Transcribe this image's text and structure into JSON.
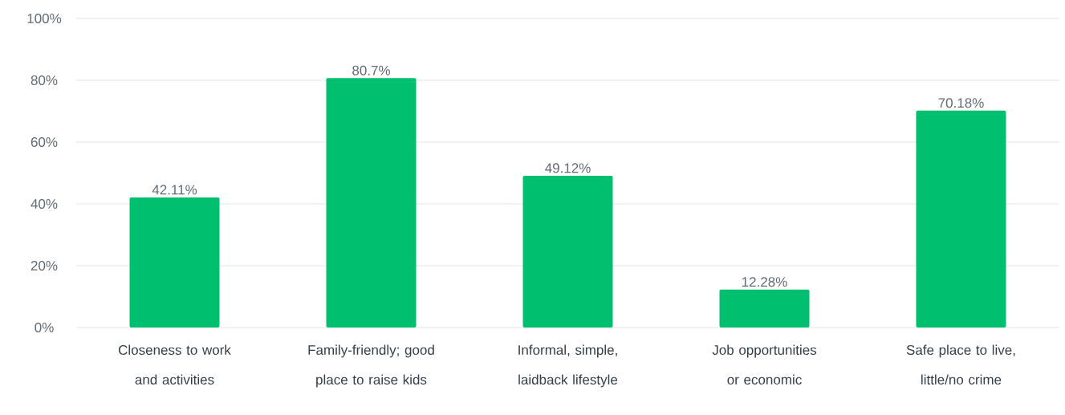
{
  "chart_data": {
    "type": "bar",
    "categories": [
      "Closeness to work and activities",
      "Family-friendly; good place to raise kids",
      "Informal, simple, laidback lifestyle",
      "Job opportunities or economic",
      "Safe place to live, little/no crime"
    ],
    "values": [
      42.11,
      80.7,
      49.12,
      12.28,
      70.18
    ],
    "value_labels": [
      "42.11%",
      "80.7%",
      "49.12%",
      "12.28%",
      "70.18%"
    ],
    "color": "#00bf6f",
    "ylim": [
      0,
      100
    ],
    "yticks": [
      {
        "value": 0,
        "label": "0%"
      },
      {
        "value": 20,
        "label": "20%"
      },
      {
        "value": 40,
        "label": "40%"
      },
      {
        "value": 60,
        "label": "60%"
      },
      {
        "value": 80,
        "label": "80%"
      },
      {
        "value": 100,
        "label": "100%"
      }
    ],
    "grid": "y"
  }
}
